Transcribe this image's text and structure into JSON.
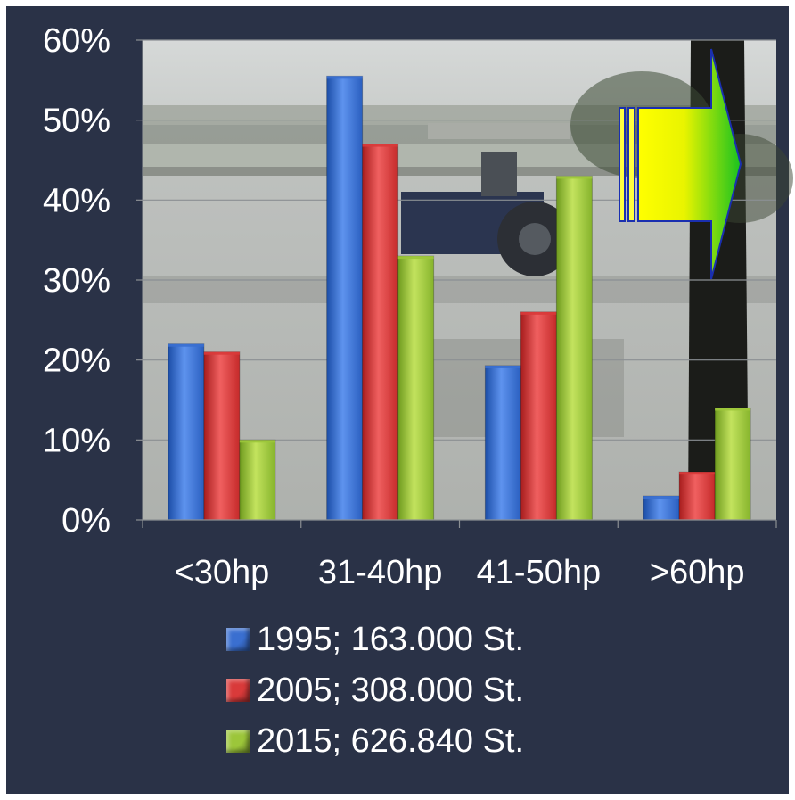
{
  "colors": {
    "background": "#2a3247",
    "series": [
      "#3a6fd0",
      "#d93a3a",
      "#9cc63a"
    ]
  },
  "chart_data": {
    "type": "bar",
    "categories": [
      "<30hp",
      "31-40hp",
      "41-50hp",
      ">60hp"
    ],
    "series": [
      {
        "name": "1995; 163.000 St.",
        "values": [
          22,
          55.5,
          19.3,
          3
        ]
      },
      {
        "name": "2005; 308.000 St.",
        "values": [
          21,
          47,
          26,
          6
        ]
      },
      {
        "name": "2015; 626.840 St.",
        "values": [
          10,
          33,
          43,
          14
        ]
      }
    ],
    "yticks": [
      "0%",
      "10%",
      "20%",
      "30%",
      "40%",
      "50%",
      "60%"
    ],
    "ylim": [
      0,
      60
    ],
    "grid": true,
    "legend_position": "bottom",
    "background_photo": "tractor-in-flooded-rice-field",
    "overlay_icon": "right-arrow-icon"
  }
}
